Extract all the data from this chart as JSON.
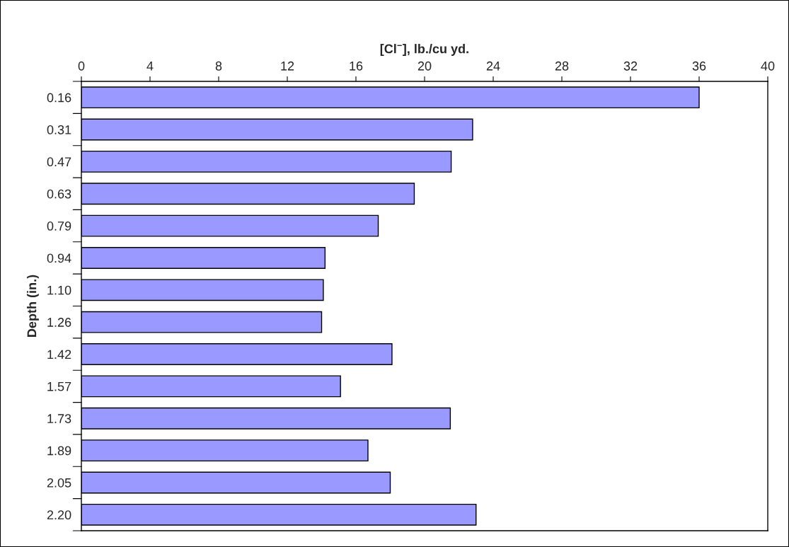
{
  "chart_data": {
    "type": "bar",
    "orientation": "horizontal",
    "xlabel": "[Cl$^{−}$], lb./cu yd.",
    "ylabel": "Depth (in.)",
    "categories": [
      "0.16",
      "0.31",
      "0.47",
      "0.63",
      "0.79",
      "0.94",
      "1.10",
      "1.26",
      "1.42",
      "1.57",
      "1.73",
      "1.89",
      "2.05",
      "2.20"
    ],
    "values": [
      36.0,
      22.8,
      21.55,
      19.4,
      17.3,
      14.2,
      14.1,
      14.0,
      18.1,
      15.1,
      21.5,
      16.7,
      18.0,
      23.0
    ],
    "color": "#9999ff",
    "xlim": [
      0,
      40
    ],
    "xticks": [
      0,
      4,
      8,
      12,
      16,
      20,
      24,
      28,
      32,
      36,
      40
    ],
    "grid": false,
    "legend": false
  }
}
